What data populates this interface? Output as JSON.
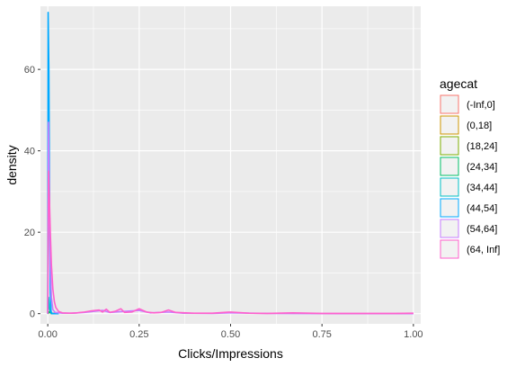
{
  "chart_data": {
    "type": "line",
    "title": "",
    "xlabel": "Clicks/Impressions",
    "ylabel": "density",
    "xlim": [
      -0.02,
      1.02
    ],
    "ylim": [
      -2.5,
      75.5
    ],
    "x_ticks": [
      0,
      0.25,
      0.5,
      0.75,
      1
    ],
    "x_tick_labels": [
      "0.00",
      "0.25",
      "0.50",
      "0.75",
      "1.00"
    ],
    "y_ticks": [
      0,
      20,
      40,
      60
    ],
    "y_tick_labels": [
      "0",
      "20",
      "40",
      "60"
    ],
    "grid": true,
    "background": "#EBEBEB",
    "legend": {
      "title": "agecat",
      "placement": "right"
    },
    "series": [
      {
        "name": "(-Inf,0]",
        "color": "#F8766D",
        "points": [
          [
            0,
            0
          ],
          [
            0.005,
            0.5
          ],
          [
            0.01,
            0
          ],
          [
            0.02,
            0
          ]
        ]
      },
      {
        "name": "(0,18]",
        "color": "#CD9600",
        "points": [
          [
            0,
            0
          ],
          [
            0.005,
            0.5
          ],
          [
            0.01,
            0
          ],
          [
            0.02,
            0
          ]
        ]
      },
      {
        "name": "(18,24]",
        "color": "#7CAE00",
        "points": [
          [
            0,
            0
          ],
          [
            0.005,
            0.5
          ],
          [
            0.01,
            0
          ],
          [
            0.02,
            0
          ]
        ]
      },
      {
        "name": "(24,34]",
        "color": "#00BE67",
        "points": [
          [
            0,
            0
          ],
          [
            0.005,
            0.5
          ],
          [
            0.01,
            0
          ],
          [
            0.02,
            0
          ]
        ]
      },
      {
        "name": "(34,44]",
        "color": "#00BFC4",
        "points": [
          [
            0,
            0
          ],
          [
            0.002,
            4
          ],
          [
            0.005,
            1
          ],
          [
            0.01,
            0
          ],
          [
            0.02,
            0
          ]
        ]
      },
      {
        "name": "(44,54]",
        "color": "#00A9FF",
        "points": [
          [
            0,
            0
          ],
          [
            0.001,
            74
          ],
          [
            0.003,
            60
          ],
          [
            0.005,
            25
          ],
          [
            0.007,
            5
          ],
          [
            0.009,
            0.5
          ],
          [
            0.012,
            0
          ],
          [
            0.03,
            0
          ]
        ]
      },
      {
        "name": "(54,64]",
        "color": "#C77CFF",
        "points": [
          [
            0,
            0
          ],
          [
            0.002,
            47
          ],
          [
            0.004,
            30
          ],
          [
            0.007,
            12
          ],
          [
            0.01,
            4
          ],
          [
            0.014,
            1
          ],
          [
            0.02,
            0.3
          ],
          [
            0.04,
            0.1
          ],
          [
            0.07,
            0.1
          ],
          [
            0.1,
            0.3
          ],
          [
            0.13,
            0.6
          ],
          [
            0.15,
            0.8
          ],
          [
            0.17,
            0.3
          ],
          [
            0.2,
            0.5
          ],
          [
            0.25,
            0.8
          ],
          [
            0.28,
            0.2
          ],
          [
            0.33,
            0.4
          ],
          [
            0.37,
            0.1
          ],
          [
            0.45,
            0.05
          ],
          [
            0.5,
            0.2
          ],
          [
            0.6,
            0.05
          ],
          [
            0.8,
            0
          ],
          [
            1,
            0
          ]
        ]
      },
      {
        "name": "(64, Inf]",
        "color": "#FF61CC",
        "points": [
          [
            0,
            0
          ],
          [
            0.002,
            35
          ],
          [
            0.004,
            30
          ],
          [
            0.007,
            20
          ],
          [
            0.01,
            12
          ],
          [
            0.014,
            6
          ],
          [
            0.018,
            3
          ],
          [
            0.022,
            1.5
          ],
          [
            0.03,
            0.5
          ],
          [
            0.04,
            0.2
          ],
          [
            0.06,
            0.1
          ],
          [
            0.08,
            0.2
          ],
          [
            0.1,
            0.4
          ],
          [
            0.12,
            0.7
          ],
          [
            0.14,
            0.9
          ],
          [
            0.15,
            0.4
          ],
          [
            0.16,
            1.1
          ],
          [
            0.17,
            0.3
          ],
          [
            0.185,
            0.6
          ],
          [
            0.2,
            1.2
          ],
          [
            0.21,
            0.3
          ],
          [
            0.23,
            0.4
          ],
          [
            0.25,
            1.2
          ],
          [
            0.27,
            0.4
          ],
          [
            0.29,
            0.2
          ],
          [
            0.31,
            0.3
          ],
          [
            0.33,
            0.9
          ],
          [
            0.35,
            0.3
          ],
          [
            0.4,
            0.1
          ],
          [
            0.45,
            0.1
          ],
          [
            0.5,
            0.4
          ],
          [
            0.55,
            0.1
          ],
          [
            0.6,
            0.05
          ],
          [
            0.67,
            0.2
          ],
          [
            0.75,
            0.05
          ],
          [
            0.85,
            0.05
          ],
          [
            0.95,
            0.05
          ],
          [
            1,
            0.1
          ]
        ]
      }
    ]
  }
}
